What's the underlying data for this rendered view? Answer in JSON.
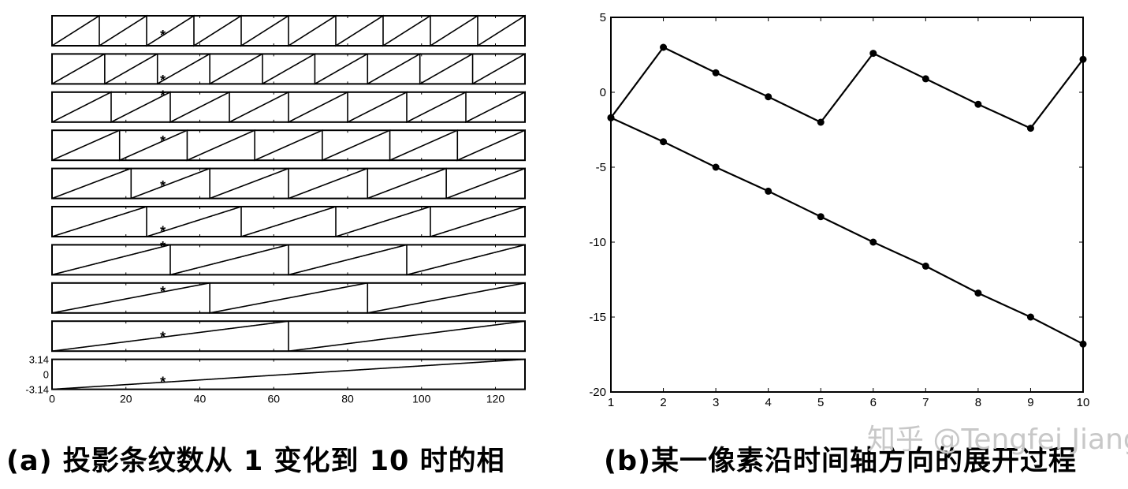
{
  "captions": {
    "a": "(a) 投影条纹数从 1 变化到 10 时的相",
    "b": "(b)某一像素沿时间轴方向的展开过程"
  },
  "watermark": "知乎 @Tengfei Jiang",
  "chart_data": [
    {
      "type": "line",
      "panel": "a",
      "title": "",
      "xlabel": "",
      "ylabel": "",
      "xlim": [
        0,
        128
      ],
      "ylim": [
        -3.14,
        3.14
      ],
      "xticks": [
        "0",
        "20",
        "40",
        "60",
        "80",
        "100",
        "120"
      ],
      "yticks": [
        "3.14",
        "0",
        "-3.14"
      ],
      "marker_x": 30,
      "subplots": [
        {
          "fringe_count": 10
        },
        {
          "fringe_count": 9
        },
        {
          "fringe_count": 8
        },
        {
          "fringe_count": 7
        },
        {
          "fringe_count": 6
        },
        {
          "fringe_count": 5
        },
        {
          "fringe_count": 4
        },
        {
          "fringe_count": 3
        },
        {
          "fringe_count": 2
        },
        {
          "fringe_count": 1
        }
      ]
    },
    {
      "type": "line",
      "panel": "b",
      "title": "",
      "xlabel": "",
      "ylabel": "",
      "xlim": [
        1,
        10
      ],
      "ylim": [
        -20,
        5
      ],
      "xticks": [
        "1",
        "2",
        "3",
        "4",
        "5",
        "6",
        "7",
        "8",
        "9",
        "10"
      ],
      "yticks": [
        "5",
        "0",
        "-5",
        "-10",
        "-15",
        "-20"
      ],
      "series": [
        {
          "x": [
            1,
            2,
            3,
            4,
            5,
            6,
            7,
            8,
            9,
            10
          ],
          "values": [
            -1.7,
            3.0,
            1.3,
            -0.3,
            -2.0,
            2.6,
            0.9,
            -0.8,
            -2.4,
            2.2
          ]
        },
        {
          "x": [
            1,
            2,
            3,
            4,
            5,
            6,
            7,
            8,
            9,
            10
          ],
          "values": [
            -1.7,
            -3.3,
            -5.0,
            -6.6,
            -8.3,
            -10.0,
            -11.6,
            -13.4,
            -15.0,
            -16.8
          ]
        }
      ]
    }
  ]
}
